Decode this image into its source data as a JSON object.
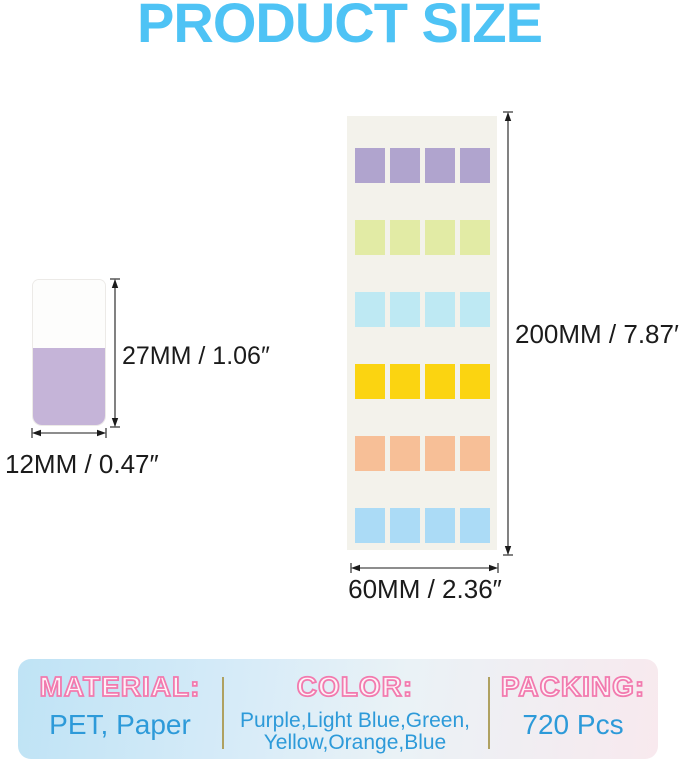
{
  "title": "PRODUCT SIZE",
  "title_color": "#4EC3F5",
  "single_tab": {
    "height_label": "27MM / 1.06″",
    "width_label": "12MM / 0.47″",
    "top_color": "#FDFDFC",
    "tab_color": "#C5B4D8"
  },
  "sheet": {
    "height_label": "200MM / 7.87″",
    "width_label": "60MM / 2.36″",
    "background": "#F3F2EB",
    "columns": 4,
    "rows": [
      {
        "name": "purple",
        "color": "#B0A4CE"
      },
      {
        "name": "green",
        "color": "#E2EBA5"
      },
      {
        "name": "light-blue",
        "color": "#BEE9F3"
      },
      {
        "name": "yellow",
        "color": "#FBD411"
      },
      {
        "name": "orange",
        "color": "#F7BF97"
      },
      {
        "name": "blue",
        "color": "#ABDBF6"
      }
    ]
  },
  "info_banner": {
    "heading_color": "#F27AAE",
    "value_color": "#2D9AD9",
    "material": {
      "heading": "MATERIAL:",
      "value": "PET, Paper"
    },
    "color": {
      "heading": "COLOR:",
      "value_line1": "Purple,Light Blue,Green,",
      "value_line2": "Yellow,Orange,Blue"
    },
    "packing": {
      "heading": "PACKING:",
      "value": "720 Pcs"
    }
  }
}
